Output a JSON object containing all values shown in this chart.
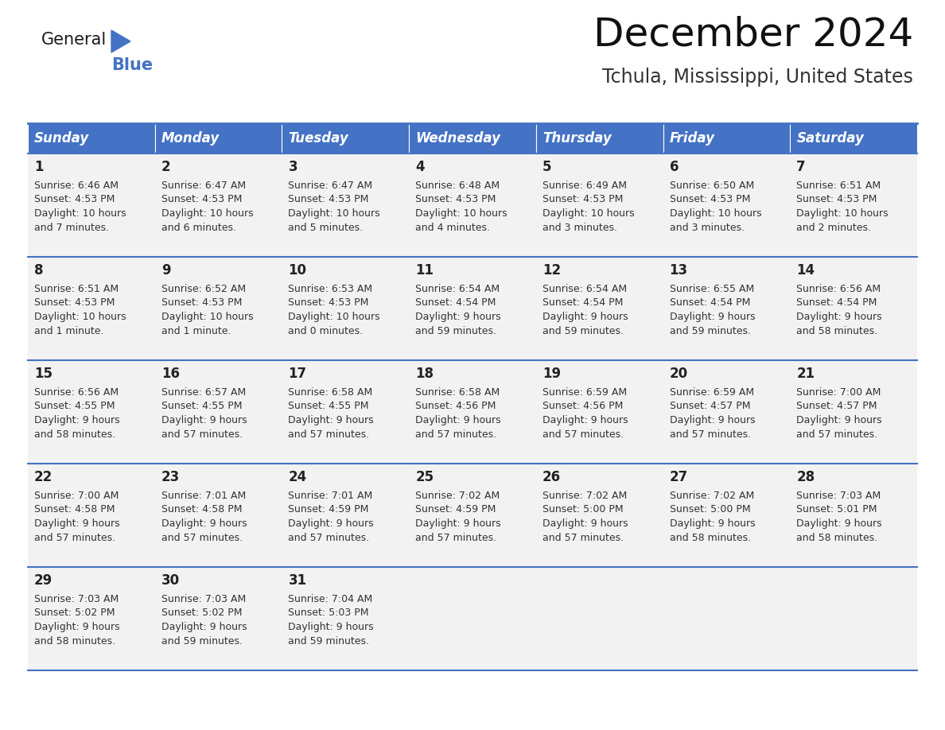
{
  "title": "December 2024",
  "subtitle": "Tchula, Mississippi, United States",
  "header_color": "#4472C4",
  "header_text_color": "#FFFFFF",
  "days_of_week": [
    "Sunday",
    "Monday",
    "Tuesday",
    "Wednesday",
    "Thursday",
    "Friday",
    "Saturday"
  ],
  "bg_color": "#FFFFFF",
  "cell_bg": "#F0F0F0",
  "grid_line_color": "#4472C4",
  "text_color": "#333333",
  "calendar_data": [
    [
      {
        "day": 1,
        "sunrise": "6:46 AM",
        "sunset": "4:53 PM",
        "daylight_l1": "Daylight: 10 hours",
        "daylight_l2": "and 7 minutes."
      },
      {
        "day": 2,
        "sunrise": "6:47 AM",
        "sunset": "4:53 PM",
        "daylight_l1": "Daylight: 10 hours",
        "daylight_l2": "and 6 minutes."
      },
      {
        "day": 3,
        "sunrise": "6:47 AM",
        "sunset": "4:53 PM",
        "daylight_l1": "Daylight: 10 hours",
        "daylight_l2": "and 5 minutes."
      },
      {
        "day": 4,
        "sunrise": "6:48 AM",
        "sunset": "4:53 PM",
        "daylight_l1": "Daylight: 10 hours",
        "daylight_l2": "and 4 minutes."
      },
      {
        "day": 5,
        "sunrise": "6:49 AM",
        "sunset": "4:53 PM",
        "daylight_l1": "Daylight: 10 hours",
        "daylight_l2": "and 3 minutes."
      },
      {
        "day": 6,
        "sunrise": "6:50 AM",
        "sunset": "4:53 PM",
        "daylight_l1": "Daylight: 10 hours",
        "daylight_l2": "and 3 minutes."
      },
      {
        "day": 7,
        "sunrise": "6:51 AM",
        "sunset": "4:53 PM",
        "daylight_l1": "Daylight: 10 hours",
        "daylight_l2": "and 2 minutes."
      }
    ],
    [
      {
        "day": 8,
        "sunrise": "6:51 AM",
        "sunset": "4:53 PM",
        "daylight_l1": "Daylight: 10 hours",
        "daylight_l2": "and 1 minute."
      },
      {
        "day": 9,
        "sunrise": "6:52 AM",
        "sunset": "4:53 PM",
        "daylight_l1": "Daylight: 10 hours",
        "daylight_l2": "and 1 minute."
      },
      {
        "day": 10,
        "sunrise": "6:53 AM",
        "sunset": "4:53 PM",
        "daylight_l1": "Daylight: 10 hours",
        "daylight_l2": "and 0 minutes."
      },
      {
        "day": 11,
        "sunrise": "6:54 AM",
        "sunset": "4:54 PM",
        "daylight_l1": "Daylight: 9 hours",
        "daylight_l2": "and 59 minutes."
      },
      {
        "day": 12,
        "sunrise": "6:54 AM",
        "sunset": "4:54 PM",
        "daylight_l1": "Daylight: 9 hours",
        "daylight_l2": "and 59 minutes."
      },
      {
        "day": 13,
        "sunrise": "6:55 AM",
        "sunset": "4:54 PM",
        "daylight_l1": "Daylight: 9 hours",
        "daylight_l2": "and 59 minutes."
      },
      {
        "day": 14,
        "sunrise": "6:56 AM",
        "sunset": "4:54 PM",
        "daylight_l1": "Daylight: 9 hours",
        "daylight_l2": "and 58 minutes."
      }
    ],
    [
      {
        "day": 15,
        "sunrise": "6:56 AM",
        "sunset": "4:55 PM",
        "daylight_l1": "Daylight: 9 hours",
        "daylight_l2": "and 58 minutes."
      },
      {
        "day": 16,
        "sunrise": "6:57 AM",
        "sunset": "4:55 PM",
        "daylight_l1": "Daylight: 9 hours",
        "daylight_l2": "and 57 minutes."
      },
      {
        "day": 17,
        "sunrise": "6:58 AM",
        "sunset": "4:55 PM",
        "daylight_l1": "Daylight: 9 hours",
        "daylight_l2": "and 57 minutes."
      },
      {
        "day": 18,
        "sunrise": "6:58 AM",
        "sunset": "4:56 PM",
        "daylight_l1": "Daylight: 9 hours",
        "daylight_l2": "and 57 minutes."
      },
      {
        "day": 19,
        "sunrise": "6:59 AM",
        "sunset": "4:56 PM",
        "daylight_l1": "Daylight: 9 hours",
        "daylight_l2": "and 57 minutes."
      },
      {
        "day": 20,
        "sunrise": "6:59 AM",
        "sunset": "4:57 PM",
        "daylight_l1": "Daylight: 9 hours",
        "daylight_l2": "and 57 minutes."
      },
      {
        "day": 21,
        "sunrise": "7:00 AM",
        "sunset": "4:57 PM",
        "daylight_l1": "Daylight: 9 hours",
        "daylight_l2": "and 57 minutes."
      }
    ],
    [
      {
        "day": 22,
        "sunrise": "7:00 AM",
        "sunset": "4:58 PM",
        "daylight_l1": "Daylight: 9 hours",
        "daylight_l2": "and 57 minutes."
      },
      {
        "day": 23,
        "sunrise": "7:01 AM",
        "sunset": "4:58 PM",
        "daylight_l1": "Daylight: 9 hours",
        "daylight_l2": "and 57 minutes."
      },
      {
        "day": 24,
        "sunrise": "7:01 AM",
        "sunset": "4:59 PM",
        "daylight_l1": "Daylight: 9 hours",
        "daylight_l2": "and 57 minutes."
      },
      {
        "day": 25,
        "sunrise": "7:02 AM",
        "sunset": "4:59 PM",
        "daylight_l1": "Daylight: 9 hours",
        "daylight_l2": "and 57 minutes."
      },
      {
        "day": 26,
        "sunrise": "7:02 AM",
        "sunset": "5:00 PM",
        "daylight_l1": "Daylight: 9 hours",
        "daylight_l2": "and 57 minutes."
      },
      {
        "day": 27,
        "sunrise": "7:02 AM",
        "sunset": "5:00 PM",
        "daylight_l1": "Daylight: 9 hours",
        "daylight_l2": "and 58 minutes."
      },
      {
        "day": 28,
        "sunrise": "7:03 AM",
        "sunset": "5:01 PM",
        "daylight_l1": "Daylight: 9 hours",
        "daylight_l2": "and 58 minutes."
      }
    ],
    [
      {
        "day": 29,
        "sunrise": "7:03 AM",
        "sunset": "5:02 PM",
        "daylight_l1": "Daylight: 9 hours",
        "daylight_l2": "and 58 minutes."
      },
      {
        "day": 30,
        "sunrise": "7:03 AM",
        "sunset": "5:02 PM",
        "daylight_l1": "Daylight: 9 hours",
        "daylight_l2": "and 59 minutes."
      },
      {
        "day": 31,
        "sunrise": "7:04 AM",
        "sunset": "5:03 PM",
        "daylight_l1": "Daylight: 9 hours",
        "daylight_l2": "and 59 minutes."
      },
      null,
      null,
      null,
      null
    ]
  ]
}
